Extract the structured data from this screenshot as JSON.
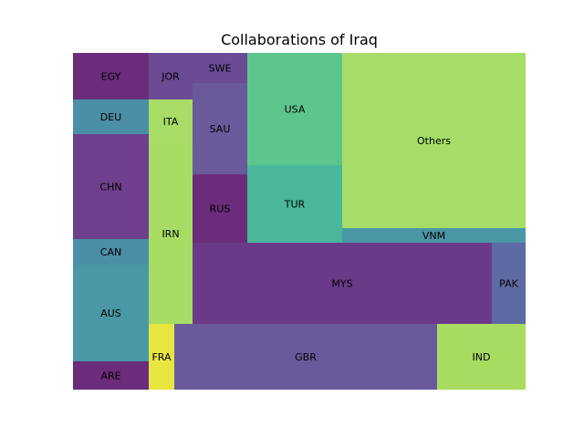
{
  "chart_data": {
    "type": "treemap",
    "title": "Collaborations of Iraq",
    "xlabel": "",
    "ylabel": "",
    "grid": false,
    "legend": "none",
    "tiles": [
      {
        "label": "EGY",
        "value": 24,
        "color": "#6b2c7b"
      },
      {
        "label": "DEU",
        "value": 12,
        "color": "#4a8fa6"
      },
      {
        "label": "CHN",
        "value": 37,
        "color": "#6e3f8c"
      },
      {
        "label": "CAN",
        "value": 9,
        "color": "#4a8fa6"
      },
      {
        "label": "AUS",
        "value": 34,
        "color": "#4a97a5"
      },
      {
        "label": "ARE",
        "value": 10,
        "color": "#6b2c7b"
      },
      {
        "label": "JOR",
        "value": 12,
        "color": "#6a4b94"
      },
      {
        "label": "ITA",
        "value": 12,
        "color": "#a8dc66"
      },
      {
        "label": "IRN",
        "value": 48,
        "color": "#a6dc64"
      },
      {
        "label": "SWE",
        "value": 8,
        "color": "#6a4b94"
      },
      {
        "label": "SAU",
        "value": 25,
        "color": "#6a5a9b"
      },
      {
        "label": "RUS",
        "value": 19,
        "color": "#6b2c7b"
      },
      {
        "label": "USA",
        "value": 33,
        "color": "#5cc58e"
      },
      {
        "label": "TUR",
        "value": 23,
        "color": "#4ab69a"
      },
      {
        "label": "Others",
        "value": 104,
        "color": "#a6dd68"
      },
      {
        "label": "VNM",
        "value": 5,
        "color": "#4a97a5"
      },
      {
        "label": "MYS",
        "value": 77,
        "color": "#6a3a88"
      },
      {
        "label": "PAK",
        "value": 13,
        "color": "#5e6aa3"
      },
      {
        "label": "FRA",
        "value": 6,
        "color": "#e8e53f"
      },
      {
        "label": "GBR",
        "value": 54,
        "color": "#6a5a9b"
      },
      {
        "label": "IND",
        "value": 22,
        "color": "#a8dc60"
      }
    ]
  }
}
